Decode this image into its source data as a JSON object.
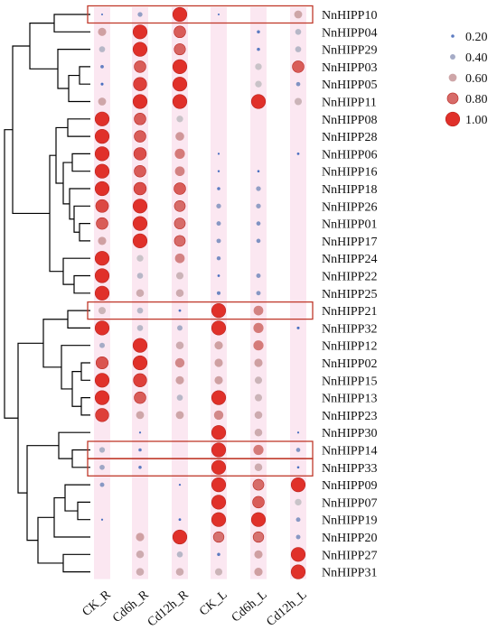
{
  "chart_data": {
    "type": "bubble-heatmap",
    "columns": [
      "CK_R",
      "Cd6h_R",
      "Cd12h_R",
      "CK_L",
      "Cd6h_L",
      "Cd12h_L"
    ],
    "genes": [
      {
        "name": "NnHIPP10",
        "values": [
          0.02,
          0.35,
          1.0,
          0.02,
          0.0,
          0.6
        ]
      },
      {
        "name": "NnHIPP04",
        "values": [
          0.62,
          1.0,
          0.85,
          0.0,
          0.2,
          0.45
        ]
      },
      {
        "name": "NnHIPP29",
        "values": [
          0.45,
          1.0,
          0.82,
          0.0,
          0.2,
          0.45
        ]
      },
      {
        "name": "NnHIPP03",
        "values": [
          0.22,
          0.85,
          1.0,
          0.0,
          0.5,
          0.85
        ]
      },
      {
        "name": "NnHIPP05",
        "values": [
          0.15,
          0.95,
          1.0,
          0.0,
          0.5,
          0.3
        ]
      },
      {
        "name": "NnHIPP11",
        "values": [
          0.6,
          1.0,
          1.0,
          0.0,
          1.0,
          0.55
        ]
      },
      {
        "name": "NnHIPP08",
        "values": [
          1.0,
          0.85,
          0.5,
          0.0,
          0.0,
          0.0
        ]
      },
      {
        "name": "NnHIPP28",
        "values": [
          1.0,
          0.85,
          0.65,
          0.0,
          0.0,
          0.0
        ]
      },
      {
        "name": "NnHIPP06",
        "values": [
          1.0,
          0.9,
          0.75,
          0.05,
          0.0,
          0.12
        ]
      },
      {
        "name": "NnHIPP16",
        "values": [
          1.0,
          0.85,
          0.72,
          0.08,
          0.1,
          0.0
        ]
      },
      {
        "name": "NnHIPP18",
        "values": [
          1.0,
          0.9,
          0.85,
          0.2,
          0.35,
          0.0
        ]
      },
      {
        "name": "NnHIPP26",
        "values": [
          0.92,
          1.0,
          0.8,
          0.35,
          0.35,
          0.0
        ]
      },
      {
        "name": "NnHIPP01",
        "values": [
          0.85,
          1.0,
          0.8,
          0.32,
          0.3,
          0.0
        ]
      },
      {
        "name": "NnHIPP17",
        "values": [
          0.62,
          1.0,
          0.8,
          0.32,
          0.3,
          0.0
        ]
      },
      {
        "name": "NnHIPP24",
        "values": [
          1.0,
          0.5,
          0.72,
          0.28,
          0.0,
          0.0
        ]
      },
      {
        "name": "NnHIPP22",
        "values": [
          1.0,
          0.45,
          0.55,
          0.12,
          0.32,
          0.0
        ]
      },
      {
        "name": "NnHIPP25",
        "values": [
          1.0,
          0.58,
          0.58,
          0.25,
          0.32,
          0.0
        ]
      },
      {
        "name": "NnHIPP21",
        "values": [
          0.55,
          0.45,
          0.12,
          1.0,
          0.72,
          0.0
        ]
      },
      {
        "name": "NnHIPP32",
        "values": [
          1.0,
          0.45,
          0.4,
          1.0,
          0.75,
          0.15
        ]
      },
      {
        "name": "NnHIPP12",
        "values": [
          0.4,
          1.0,
          0.58,
          0.62,
          0.75,
          0.0
        ]
      },
      {
        "name": "NnHIPP02",
        "values": [
          0.88,
          1.0,
          0.7,
          0.62,
          0.62,
          0.0
        ]
      },
      {
        "name": "NnHIPP15",
        "values": [
          1.0,
          0.95,
          0.62,
          0.62,
          0.55,
          0.0
        ]
      },
      {
        "name": "NnHIPP13",
        "values": [
          1.0,
          0.85,
          0.45,
          1.0,
          0.55,
          0.0
        ]
      },
      {
        "name": "NnHIPP23",
        "values": [
          0.95,
          0.6,
          0.6,
          0.7,
          0.58,
          0.0
        ]
      },
      {
        "name": "NnHIPP30",
        "values": [
          0.0,
          0.05,
          0.0,
          1.0,
          0.58,
          0.05
        ]
      },
      {
        "name": "NnHIPP14",
        "values": [
          0.42,
          0.2,
          0.0,
          1.0,
          0.75,
          0.3
        ]
      },
      {
        "name": "NnHIPP33",
        "values": [
          0.38,
          0.2,
          0.0,
          1.0,
          0.58,
          0.1
        ]
      },
      {
        "name": "NnHIPP09",
        "values": [
          0.32,
          0.0,
          0.05,
          1.0,
          0.8,
          1.0
        ]
      },
      {
        "name": "NnHIPP07",
        "values": [
          0.0,
          0.0,
          0.0,
          1.0,
          0.85,
          0.5
        ]
      },
      {
        "name": "NnHIPP19",
        "values": [
          0.05,
          0.0,
          0.12,
          1.0,
          1.0,
          0.32
        ]
      },
      {
        "name": "NnHIPP20",
        "values": [
          0.0,
          0.62,
          1.0,
          0.78,
          0.78,
          0.32
        ]
      },
      {
        "name": "NnHIPP27",
        "values": [
          0.0,
          0.58,
          0.45,
          0.2,
          0.62,
          1.0
        ]
      },
      {
        "name": "NnHIPP31",
        "values": [
          0.0,
          0.58,
          0.58,
          0.55,
          0.62,
          1.0
        ]
      }
    ],
    "highlighted_genes": [
      "NnHIPP10",
      "NnHIPP21",
      "NnHIPP14",
      "NnHIPP33"
    ],
    "legend": {
      "entries": [
        {
          "label": "0.20",
          "value": 0.2
        },
        {
          "label": "0.40",
          "value": 0.4
        },
        {
          "label": "0.60",
          "value": 0.6
        },
        {
          "label": "0.80",
          "value": 0.8
        },
        {
          "label": "1.00",
          "value": 1.0
        }
      ],
      "placement": "top-right"
    },
    "colors": {
      "low": "#4a6fc0",
      "mid": "#c9c3c8",
      "high": "#e0302a",
      "highlight_box": "#c0392b",
      "column_band": "#f7d4e6"
    }
  }
}
